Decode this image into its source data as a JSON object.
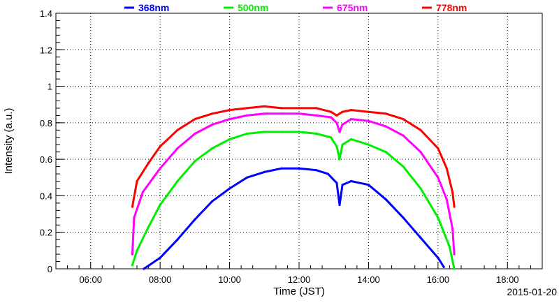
{
  "chart_data": {
    "type": "scatter",
    "title": "",
    "xlabel": "Time (JST)",
    "ylabel": "Intensity (a.u.)",
    "date": "2015-01-20",
    "xlim": [
      "05:00",
      "19:00"
    ],
    "ylim": [
      0,
      1.4
    ],
    "x_ticks": [
      "06:00",
      "08:00",
      "10:00",
      "12:00",
      "14:00",
      "16:00",
      "18:00"
    ],
    "y_ticks": [
      "0",
      "0.2",
      "0.4",
      "0.6",
      "0.8",
      "1",
      "1.2",
      "1.4"
    ],
    "grid": true,
    "legend_position": "top",
    "series": [
      {
        "name": "368nm",
        "color": "#0000ff",
        "points": [
          [
            "07:32",
            0.0
          ],
          [
            "08:00",
            0.06
          ],
          [
            "08:30",
            0.16
          ],
          [
            "09:00",
            0.27
          ],
          [
            "09:30",
            0.37
          ],
          [
            "10:00",
            0.44
          ],
          [
            "10:30",
            0.5
          ],
          [
            "11:00",
            0.53
          ],
          [
            "11:30",
            0.55
          ],
          [
            "12:00",
            0.55
          ],
          [
            "12:30",
            0.54
          ],
          [
            "12:50",
            0.52
          ],
          [
            "13:05",
            0.47
          ],
          [
            "13:10",
            0.35
          ],
          [
            "13:15",
            0.46
          ],
          [
            "13:30",
            0.48
          ],
          [
            "14:00",
            0.46
          ],
          [
            "14:30",
            0.38
          ],
          [
            "15:00",
            0.28
          ],
          [
            "15:30",
            0.17
          ],
          [
            "16:00",
            0.06
          ],
          [
            "16:10",
            0.01
          ]
        ]
      },
      {
        "name": "500nm",
        "color": "#00ee00",
        "points": [
          [
            "07:12",
            0.02
          ],
          [
            "07:20",
            0.1
          ],
          [
            "07:40",
            0.23
          ],
          [
            "08:00",
            0.35
          ],
          [
            "08:30",
            0.48
          ],
          [
            "09:00",
            0.59
          ],
          [
            "09:30",
            0.66
          ],
          [
            "10:00",
            0.71
          ],
          [
            "10:30",
            0.74
          ],
          [
            "11:00",
            0.75
          ],
          [
            "11:30",
            0.75
          ],
          [
            "12:00",
            0.75
          ],
          [
            "12:30",
            0.74
          ],
          [
            "12:55",
            0.72
          ],
          [
            "13:05",
            0.67
          ],
          [
            "13:10",
            0.6
          ],
          [
            "13:15",
            0.68
          ],
          [
            "13:30",
            0.71
          ],
          [
            "14:00",
            0.68
          ],
          [
            "14:30",
            0.64
          ],
          [
            "15:00",
            0.56
          ],
          [
            "15:30",
            0.44
          ],
          [
            "16:00",
            0.28
          ],
          [
            "16:20",
            0.12
          ],
          [
            "16:28",
            0.0
          ]
        ]
      },
      {
        "name": "675nm",
        "color": "#ff00ff",
        "points": [
          [
            "07:12",
            0.08
          ],
          [
            "07:15",
            0.28
          ],
          [
            "07:30",
            0.42
          ],
          [
            "08:00",
            0.55
          ],
          [
            "08:30",
            0.66
          ],
          [
            "09:00",
            0.74
          ],
          [
            "09:30",
            0.79
          ],
          [
            "10:00",
            0.82
          ],
          [
            "10:30",
            0.84
          ],
          [
            "11:00",
            0.85
          ],
          [
            "11:30",
            0.85
          ],
          [
            "12:00",
            0.85
          ],
          [
            "12:30",
            0.84
          ],
          [
            "12:55",
            0.83
          ],
          [
            "13:05",
            0.8
          ],
          [
            "13:10",
            0.75
          ],
          [
            "13:15",
            0.79
          ],
          [
            "13:30",
            0.82
          ],
          [
            "14:00",
            0.81
          ],
          [
            "14:30",
            0.78
          ],
          [
            "15:00",
            0.73
          ],
          [
            "15:30",
            0.64
          ],
          [
            "16:00",
            0.5
          ],
          [
            "16:15",
            0.38
          ],
          [
            "16:25",
            0.22
          ],
          [
            "16:28",
            0.08
          ]
        ]
      },
      {
        "name": "778nm",
        "color": "#ff0000",
        "points": [
          [
            "07:12",
            0.34
          ],
          [
            "07:20",
            0.48
          ],
          [
            "07:40",
            0.58
          ],
          [
            "08:00",
            0.67
          ],
          [
            "08:30",
            0.76
          ],
          [
            "09:00",
            0.82
          ],
          [
            "09:30",
            0.85
          ],
          [
            "10:00",
            0.87
          ],
          [
            "10:30",
            0.88
          ],
          [
            "11:00",
            0.89
          ],
          [
            "11:30",
            0.88
          ],
          [
            "12:00",
            0.88
          ],
          [
            "12:30",
            0.88
          ],
          [
            "12:55",
            0.86
          ],
          [
            "13:05",
            0.84
          ],
          [
            "13:15",
            0.86
          ],
          [
            "13:30",
            0.87
          ],
          [
            "14:00",
            0.86
          ],
          [
            "14:30",
            0.85
          ],
          [
            "15:00",
            0.82
          ],
          [
            "15:30",
            0.76
          ],
          [
            "16:00",
            0.66
          ],
          [
            "16:15",
            0.55
          ],
          [
            "16:25",
            0.42
          ],
          [
            "16:28",
            0.34
          ]
        ]
      }
    ]
  }
}
